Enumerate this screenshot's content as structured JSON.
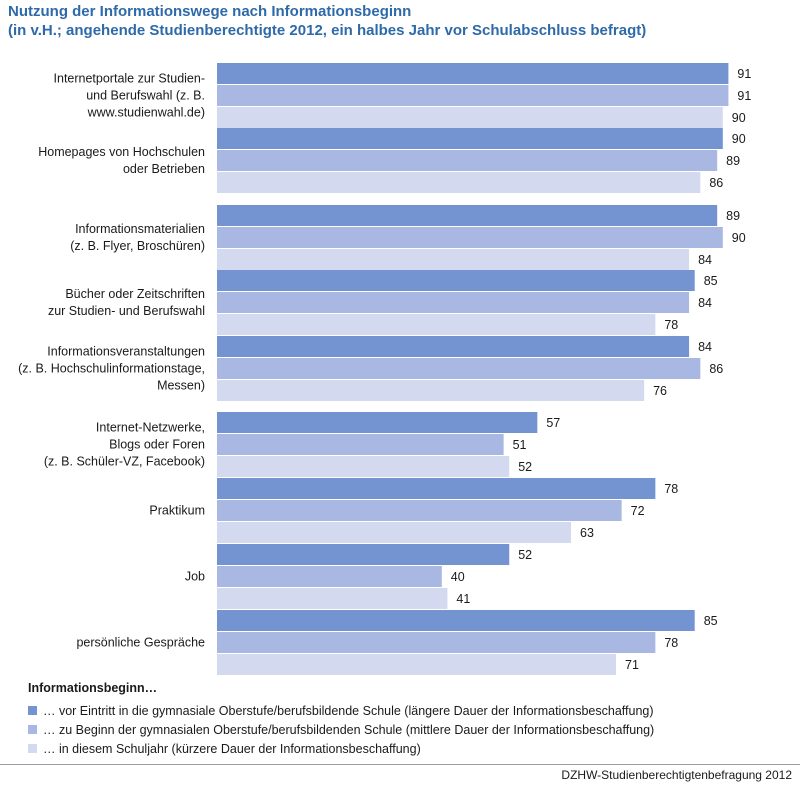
{
  "title_lines": [
    "Nutzung der Informationswege nach Informationsbeginn",
    "(in v.H.; angehende Studienberechtigte 2012, ein halbes Jahr vor Schulabschluss befragt)"
  ],
  "legend": {
    "heading": "Informationsbeginn…",
    "items": [
      "… vor Eintritt in die gymnasiale Oberstufe/berufsbildende Schule (längere Dauer der Informationsbeschaffung)",
      "… zu Beginn der gymnasialen Oberstufe/berufsbildenden Schule (mittlere Dauer der Informationsbeschaffung)",
      "… in diesem Schuljahr (kürzere Dauer der Informationsbeschaffung)"
    ]
  },
  "source": "DZHW-Studienberechtigtenbefragung 2012",
  "colors": {
    "title": "#2e6aa9",
    "series": [
      "#7394d0",
      "#a8b8e2",
      "#d3daf0"
    ]
  },
  "chart_data": {
    "type": "bar",
    "orientation": "horizontal",
    "title": "Nutzung der Informationswege nach Informationsbeginn",
    "unit": "v.H.",
    "xlim": [
      0,
      100
    ],
    "categories": [
      [
        "Internetportale zur Studien-",
        "und Berufswahl (z. B.",
        "www.studienwahl.de)"
      ],
      [
        "Homepages von Hochschulen",
        "oder Betrieben"
      ],
      [
        "Informationsmaterialien",
        "(z. B. Flyer, Broschüren)"
      ],
      [
        "Bücher oder Zeitschriften",
        "zur Studien- und Berufswahl"
      ],
      [
        "Informationsveranstaltungen",
        "(z. B. Hochschulinformationstage,",
        "Messen)"
      ],
      [
        "Internet-Netzwerke,",
        "Blogs oder Foren",
        "(z. B. Schüler-VZ, Facebook)"
      ],
      [
        "Praktikum"
      ],
      [
        "Job"
      ],
      [
        "persönliche Gespräche"
      ]
    ],
    "series": [
      {
        "name": "… vor Eintritt in die gymnasiale Oberstufe/berufsbildende Schule (längere Dauer der Informationsbeschaffung)",
        "values": [
          91,
          90,
          89,
          85,
          84,
          57,
          78,
          52,
          85
        ]
      },
      {
        "name": "… zu Beginn der gymnasialen Oberstufe/berufsbildenden Schule (mittlere Dauer der Informationsbeschaffung)",
        "values": [
          91,
          89,
          90,
          84,
          86,
          51,
          72,
          40,
          78
        ]
      },
      {
        "name": "… in diesem Schuljahr (kürzere Dauer der Informationsbeschaffung)",
        "values": [
          90,
          86,
          84,
          78,
          76,
          52,
          63,
          41,
          71
        ]
      }
    ]
  }
}
